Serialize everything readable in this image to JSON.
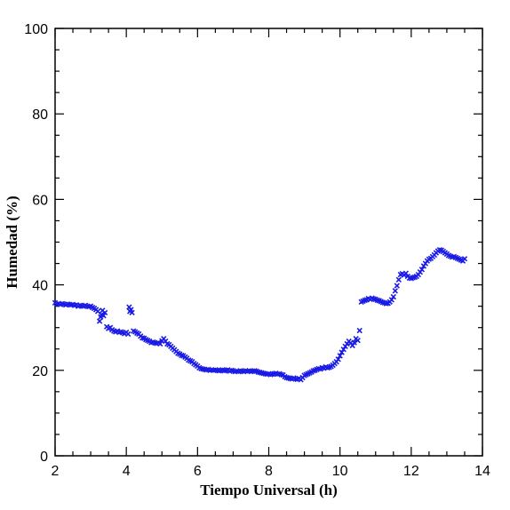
{
  "chart_data": {
    "type": "scatter",
    "title": "",
    "xlabel": "Tiempo Universal (h)",
    "ylabel": "Humedad (%)",
    "xlim": [
      2,
      14
    ],
    "ylim": [
      0,
      100
    ],
    "xticks": [
      2,
      4,
      6,
      8,
      10,
      12,
      14
    ],
    "yticks": [
      0,
      20,
      40,
      60,
      80,
      100
    ],
    "x_minor_step": 0.5,
    "y_minor_step": 5,
    "grid": false,
    "legend": "none",
    "marker": "x",
    "color": "#1a1ae6",
    "series": [
      {
        "points": [
          [
            2.0,
            35.8
          ],
          [
            2.05,
            35.5
          ],
          [
            2.1,
            35.6
          ],
          [
            2.15,
            35.4
          ],
          [
            2.2,
            35.6
          ],
          [
            2.25,
            35.5
          ],
          [
            2.3,
            35.3
          ],
          [
            2.35,
            35.5
          ],
          [
            2.4,
            35.4
          ],
          [
            2.45,
            35.3
          ],
          [
            2.5,
            35.4
          ],
          [
            2.55,
            35.2
          ],
          [
            2.6,
            35.3
          ],
          [
            2.65,
            35.0
          ],
          [
            2.7,
            35.2
          ],
          [
            2.75,
            35.1
          ],
          [
            2.8,
            35.0
          ],
          [
            2.85,
            35.2
          ],
          [
            2.9,
            35.0
          ],
          [
            2.95,
            34.9
          ],
          [
            3.0,
            35.0
          ],
          [
            3.05,
            34.7
          ],
          [
            3.1,
            34.5
          ],
          [
            3.15,
            34.2
          ],
          [
            3.2,
            33.8
          ],
          [
            3.25,
            31.5
          ],
          [
            3.28,
            32.5
          ],
          [
            3.3,
            33.0
          ],
          [
            3.33,
            34.0
          ],
          [
            3.36,
            32.8
          ],
          [
            3.4,
            33.5
          ],
          [
            3.45,
            30.2
          ],
          [
            3.5,
            29.8
          ],
          [
            3.55,
            30.0
          ],
          [
            3.6,
            29.5
          ],
          [
            3.65,
            29.2
          ],
          [
            3.7,
            29.0
          ],
          [
            3.75,
            29.2
          ],
          [
            3.8,
            28.9
          ],
          [
            3.85,
            29.0
          ],
          [
            3.9,
            28.8
          ],
          [
            3.95,
            28.6
          ],
          [
            4.0,
            28.9
          ],
          [
            4.05,
            28.5
          ],
          [
            4.08,
            34.8
          ],
          [
            4.1,
            33.8
          ],
          [
            4.13,
            34.2
          ],
          [
            4.16,
            33.5
          ],
          [
            4.2,
            29.2
          ],
          [
            4.25,
            29.0
          ],
          [
            4.3,
            28.7
          ],
          [
            4.35,
            28.5
          ],
          [
            4.4,
            28.0
          ],
          [
            4.45,
            27.6
          ],
          [
            4.5,
            27.5
          ],
          [
            4.55,
            27.2
          ],
          [
            4.6,
            27.0
          ],
          [
            4.65,
            26.8
          ],
          [
            4.7,
            26.5
          ],
          [
            4.75,
            26.6
          ],
          [
            4.8,
            26.4
          ],
          [
            4.85,
            26.3
          ],
          [
            4.9,
            26.5
          ],
          [
            4.95,
            26.2
          ],
          [
            5.0,
            26.9
          ],
          [
            5.05,
            27.4
          ],
          [
            5.1,
            26.8
          ],
          [
            5.15,
            26.2
          ],
          [
            5.2,
            26.0
          ],
          [
            5.25,
            25.6
          ],
          [
            5.3,
            25.2
          ],
          [
            5.35,
            24.8
          ],
          [
            5.4,
            24.4
          ],
          [
            5.45,
            24.0
          ],
          [
            5.5,
            23.8
          ],
          [
            5.55,
            23.5
          ],
          [
            5.6,
            23.4
          ],
          [
            5.65,
            23.1
          ],
          [
            5.7,
            22.8
          ],
          [
            5.75,
            22.4
          ],
          [
            5.8,
            22.2
          ],
          [
            5.85,
            22.0
          ],
          [
            5.9,
            21.6
          ],
          [
            5.95,
            21.3
          ],
          [
            6.0,
            21.0
          ],
          [
            6.05,
            20.6
          ],
          [
            6.1,
            20.4
          ],
          [
            6.15,
            20.3
          ],
          [
            6.2,
            20.2
          ],
          [
            6.25,
            20.1
          ],
          [
            6.3,
            20.2
          ],
          [
            6.35,
            20.0
          ],
          [
            6.4,
            20.1
          ],
          [
            6.45,
            20.0
          ],
          [
            6.5,
            20.1
          ],
          [
            6.55,
            20.0
          ],
          [
            6.6,
            19.9
          ],
          [
            6.65,
            20.0
          ],
          [
            6.7,
            20.1
          ],
          [
            6.75,
            19.9
          ],
          [
            6.8,
            20.0
          ],
          [
            6.85,
            20.1
          ],
          [
            6.9,
            19.8
          ],
          [
            6.95,
            20.0
          ],
          [
            7.0,
            19.9
          ],
          [
            7.05,
            19.7
          ],
          [
            7.1,
            19.8
          ],
          [
            7.15,
            19.7
          ],
          [
            7.2,
            19.9
          ],
          [
            7.25,
            19.8
          ],
          [
            7.3,
            19.7
          ],
          [
            7.35,
            19.9
          ],
          [
            7.4,
            19.8
          ],
          [
            7.45,
            19.9
          ],
          [
            7.5,
            19.7
          ],
          [
            7.55,
            19.8
          ],
          [
            7.6,
            19.9
          ],
          [
            7.65,
            19.8
          ],
          [
            7.7,
            19.6
          ],
          [
            7.75,
            19.5
          ],
          [
            7.8,
            19.4
          ],
          [
            7.85,
            19.3
          ],
          [
            7.9,
            19.2
          ],
          [
            7.95,
            19.1
          ],
          [
            8.0,
            19.2
          ],
          [
            8.05,
            19.0
          ],
          [
            8.1,
            19.1
          ],
          [
            8.15,
            19.2
          ],
          [
            8.2,
            19.3
          ],
          [
            8.25,
            19.1
          ],
          [
            8.3,
            19.2
          ],
          [
            8.35,
            19.0
          ],
          [
            8.4,
            18.9
          ],
          [
            8.45,
            18.5
          ],
          [
            8.5,
            18.3
          ],
          [
            8.55,
            18.2
          ],
          [
            8.6,
            18.1
          ],
          [
            8.65,
            18.0
          ],
          [
            8.7,
            18.2
          ],
          [
            8.75,
            18.0
          ],
          [
            8.8,
            17.9
          ],
          [
            8.85,
            18.1
          ],
          [
            8.9,
            17.8
          ],
          [
            8.95,
            18.3
          ],
          [
            9.0,
            18.8
          ],
          [
            9.05,
            19.0
          ],
          [
            9.1,
            19.2
          ],
          [
            9.15,
            19.4
          ],
          [
            9.2,
            19.6
          ],
          [
            9.25,
            19.9
          ],
          [
            9.3,
            20.0
          ],
          [
            9.35,
            20.2
          ],
          [
            9.4,
            20.4
          ],
          [
            9.45,
            20.3
          ],
          [
            9.5,
            20.6
          ],
          [
            9.55,
            20.5
          ],
          [
            9.6,
            20.8
          ],
          [
            9.65,
            20.6
          ],
          [
            9.7,
            20.7
          ],
          [
            9.75,
            20.9
          ],
          [
            9.8,
            21.2
          ],
          [
            9.85,
            21.6
          ],
          [
            9.9,
            22.0
          ],
          [
            9.95,
            22.6
          ],
          [
            10.0,
            23.4
          ],
          [
            10.05,
            24.2
          ],
          [
            10.1,
            24.9
          ],
          [
            10.15,
            25.6
          ],
          [
            10.2,
            26.2
          ],
          [
            10.25,
            26.8
          ],
          [
            10.3,
            26.4
          ],
          [
            10.35,
            25.8
          ],
          [
            10.4,
            26.5
          ],
          [
            10.45,
            27.4
          ],
          [
            10.5,
            27.0
          ],
          [
            10.55,
            29.3
          ],
          [
            10.6,
            36.0
          ],
          [
            10.65,
            36.2
          ],
          [
            10.7,
            36.4
          ],
          [
            10.75,
            36.5
          ],
          [
            10.8,
            36.8
          ],
          [
            10.85,
            36.6
          ],
          [
            10.9,
            36.9
          ],
          [
            10.95,
            36.7
          ],
          [
            11.0,
            36.6
          ],
          [
            11.05,
            36.4
          ],
          [
            11.1,
            36.3
          ],
          [
            11.15,
            36.1
          ],
          [
            11.2,
            35.9
          ],
          [
            11.25,
            35.8
          ],
          [
            11.3,
            35.6
          ],
          [
            11.35,
            35.7
          ],
          [
            11.4,
            36.0
          ],
          [
            11.45,
            36.5
          ],
          [
            11.5,
            37.2
          ],
          [
            11.55,
            38.6
          ],
          [
            11.6,
            39.8
          ],
          [
            11.65,
            41.2
          ],
          [
            11.7,
            42.4
          ],
          [
            11.75,
            42.6
          ],
          [
            11.8,
            42.3
          ],
          [
            11.85,
            42.7
          ],
          [
            11.9,
            42.0
          ],
          [
            11.95,
            41.6
          ],
          [
            12.0,
            41.5
          ],
          [
            12.05,
            41.7
          ],
          [
            12.1,
            41.8
          ],
          [
            12.15,
            42.0
          ],
          [
            12.2,
            42.4
          ],
          [
            12.25,
            43.0
          ],
          [
            12.3,
            43.6
          ],
          [
            12.35,
            44.4
          ],
          [
            12.4,
            45.0
          ],
          [
            12.45,
            45.6
          ],
          [
            12.5,
            46.0
          ],
          [
            12.55,
            46.2
          ],
          [
            12.6,
            46.6
          ],
          [
            12.65,
            47.0
          ],
          [
            12.7,
            47.5
          ],
          [
            12.75,
            47.9
          ],
          [
            12.8,
            48.2
          ],
          [
            12.85,
            48.1
          ],
          [
            12.9,
            47.8
          ],
          [
            12.95,
            47.5
          ],
          [
            13.0,
            47.2
          ],
          [
            13.05,
            46.9
          ],
          [
            13.1,
            46.7
          ],
          [
            13.15,
            46.5
          ],
          [
            13.2,
            46.6
          ],
          [
            13.25,
            46.4
          ],
          [
            13.3,
            46.2
          ],
          [
            13.35,
            46.0
          ],
          [
            13.4,
            45.8
          ],
          [
            13.45,
            45.6
          ],
          [
            13.5,
            46.1
          ]
        ]
      }
    ]
  }
}
